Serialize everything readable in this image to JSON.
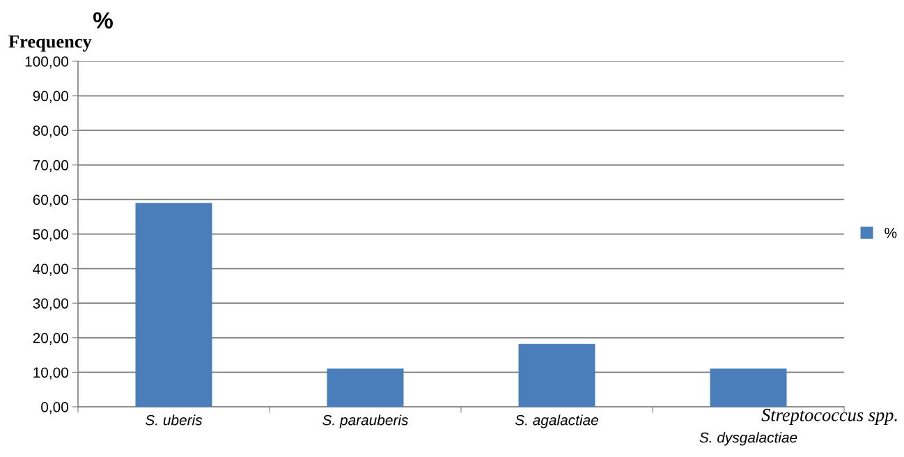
{
  "chart_data": {
    "type": "bar",
    "ylabel": "Frequency",
    "xlabel": "Streptococcus spp.",
    "annotations": [
      "%"
    ],
    "categories": [
      "S. uberis",
      "S. parauberis",
      "S. agalactiae",
      "S. dysgalactiae"
    ],
    "series": [
      {
        "name": "%",
        "color": "#4a7ebb",
        "values": [
          59.0,
          11.1,
          18.2,
          11.1
        ]
      }
    ],
    "ylim": [
      0,
      100
    ],
    "yticks": [
      {
        "value": 0,
        "label": "0,00"
      },
      {
        "value": 10,
        "label": "10,00"
      },
      {
        "value": 20,
        "label": "20,00"
      },
      {
        "value": 30,
        "label": "30,00"
      },
      {
        "value": 40,
        "label": "40,00"
      },
      {
        "value": 50,
        "label": "50,00"
      },
      {
        "value": 60,
        "label": "60,00"
      },
      {
        "value": 70,
        "label": "70,00"
      },
      {
        "value": 80,
        "label": "80,00"
      },
      {
        "value": 90,
        "label": "90,00"
      },
      {
        "value": 100,
        "label": "100,00"
      }
    ],
    "grid": "y",
    "legend": "right"
  }
}
